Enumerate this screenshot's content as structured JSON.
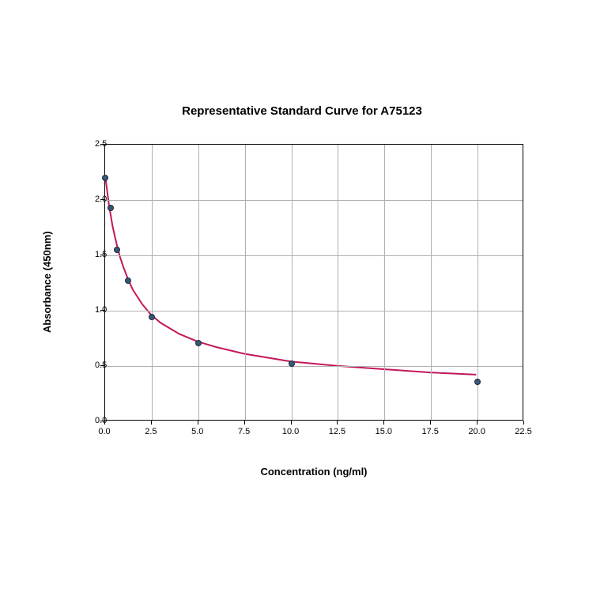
{
  "chart": {
    "type": "scatter-with-curve",
    "title": "Representative Standard Curve for A75123",
    "title_fontsize": 15,
    "title_fontweight": "bold",
    "xlabel": "Concentration (ng/ml)",
    "ylabel": "Absorbance (450nm)",
    "label_fontsize": 13,
    "label_fontweight": "bold",
    "tick_fontsize": 11,
    "background_color": "#ffffff",
    "grid_color": "#b0b0b0",
    "axis_color": "#000000",
    "xlim": [
      0.0,
      22.5
    ],
    "ylim": [
      0.0,
      2.5
    ],
    "xticks": [
      0.0,
      2.5,
      5.0,
      7.5,
      10.0,
      12.5,
      15.0,
      17.5,
      20.0,
      22.5
    ],
    "xtick_labels": [
      "0.0",
      "2.5",
      "5.0",
      "7.5",
      "10.0",
      "12.5",
      "15.0",
      "17.5",
      "20.0",
      "22.5"
    ],
    "yticks": [
      0.0,
      0.5,
      1.0,
      1.5,
      2.0,
      2.5
    ],
    "ytick_labels": [
      "0.0",
      "0.5",
      "1.0",
      "1.5",
      "2.0",
      "2.5"
    ],
    "grid_on": true,
    "scatter": {
      "x": [
        0.0,
        0.31,
        0.62,
        1.25,
        2.5,
        5.0,
        10.0,
        20.0
      ],
      "y": [
        2.2,
        1.93,
        1.55,
        1.27,
        0.94,
        0.71,
        0.52,
        0.36
      ],
      "marker_color": "#3a5778",
      "marker_border": "#1a2a3a",
      "marker_size": 8
    },
    "curve": {
      "line_color": "#c2185b",
      "line_width": 2,
      "x": [
        0.0,
        0.2,
        0.4,
        0.6,
        0.8,
        1.0,
        1.25,
        1.5,
        2.0,
        2.5,
        3.0,
        4.0,
        5.0,
        6.0,
        7.5,
        10.0,
        12.5,
        15.0,
        17.5,
        20.0
      ],
      "y": [
        2.22,
        1.96,
        1.76,
        1.61,
        1.48,
        1.38,
        1.27,
        1.18,
        1.05,
        0.95,
        0.88,
        0.78,
        0.71,
        0.66,
        0.6,
        0.53,
        0.49,
        0.46,
        0.43,
        0.41
      ]
    }
  }
}
